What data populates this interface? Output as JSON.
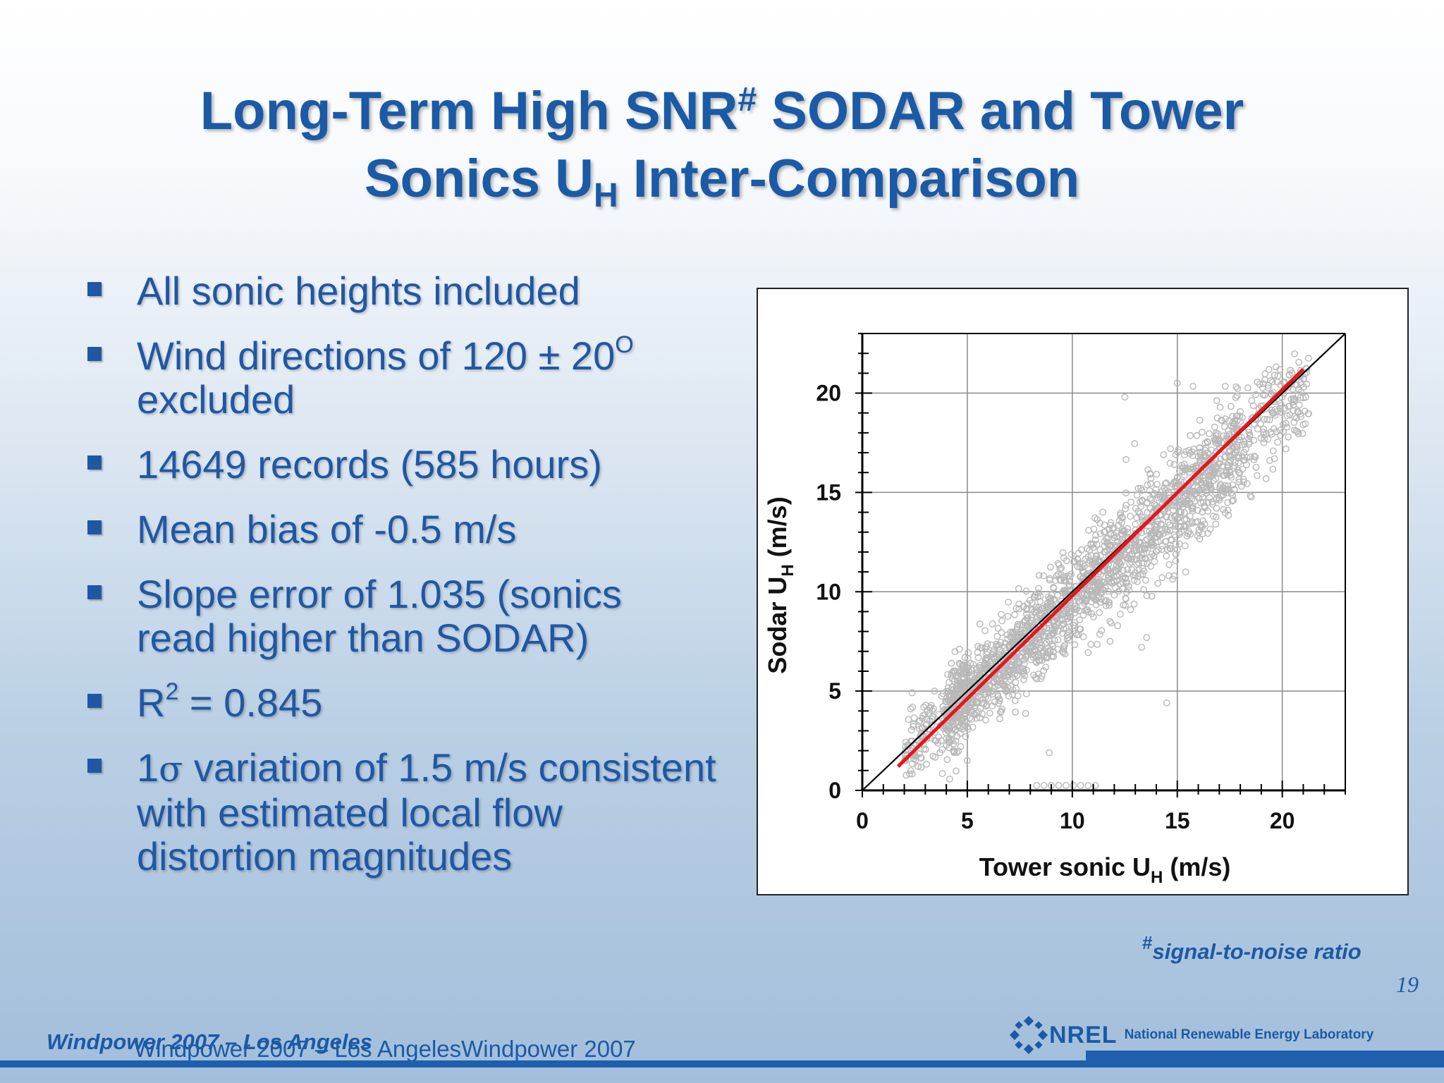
{
  "slide": {
    "title_line1_a": "Long-Term High SNR",
    "title_line1_sup": "#",
    "title_line1_b": " SODAR and Tower",
    "title_line2_a": "Sonics U",
    "title_line2_sub": "H",
    "title_line2_b": " Inter-Comparison"
  },
  "bullets": {
    "b1": "All sonic heights included",
    "b2_a": "Wind directions of 120 ± 20",
    "b2_sup": "O",
    "b2_b": "excluded",
    "b3": "14649 records (585 hours)",
    "b4": "Mean bias of -0.5 m/s",
    "b5": "Slope error of 1.035 (sonics read higher than SODAR)",
    "b6_a": "R",
    "b6_sup": "2",
    "b6_b": " = 0.845",
    "b7_a": "1",
    "b7_sigma": "σ",
    "b7_b": " variation of 1.5 m/s consistent with estimated local flow distortion magnitudes"
  },
  "footnote": {
    "hash": "#",
    "text": "signal-to-noise ratio"
  },
  "page_number": "19",
  "footer": {
    "left": "Windpower 2007 – Los Angeles",
    "ghost": "Windpower 2007 – Los AngelesWindpower 2007"
  },
  "logo": {
    "mark_text": "NREL",
    "full_name": "National Renewable Energy Laboratory"
  },
  "colors": {
    "title": "#1a5aa6",
    "bullet_text": "#2057a4",
    "scatter_points": "#b8b8b8",
    "identity_line": "#000000",
    "fit_line": "#e8151b"
  },
  "chart_data": {
    "type": "scatter",
    "xlabel_a": "Tower sonic U",
    "xlabel_sub": "H",
    "xlabel_b": " (m/s)",
    "ylabel_a": "Sodar U",
    "ylabel_sub": "H",
    "ylabel_b": " (m/s)",
    "xlim": [
      0,
      23
    ],
    "ylim": [
      0,
      23
    ],
    "x_ticks": [
      0,
      5,
      10,
      15,
      20
    ],
    "y_ticks": [
      0,
      5,
      10,
      15,
      20
    ],
    "grid": true,
    "series": [
      {
        "kind": "points",
        "n_records": 14649,
        "mean_bias": -0.5,
        "slope": 1.035,
        "r2": 0.845,
        "sigma": 1.5,
        "x_range": [
          1.5,
          21.5
        ],
        "y_range": [
          0,
          22
        ]
      },
      {
        "kind": "identity_line",
        "x": [
          0,
          23
        ],
        "y": [
          0,
          23
        ]
      },
      {
        "kind": "fit_line",
        "x": [
          1.7,
          21
        ],
        "y": [
          1.2,
          21.2
        ]
      }
    ]
  }
}
